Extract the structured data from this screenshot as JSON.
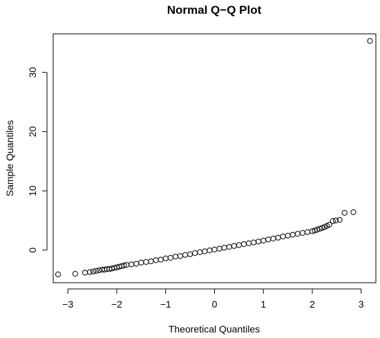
{
  "chart_data": {
    "type": "scatter",
    "title": "Normal Q−Q Plot",
    "xlabel": "Theoretical Quantiles",
    "ylabel": "Sample Quantiles",
    "xlim": [
      -3.3,
      3.3
    ],
    "ylim": [
      -5.5,
      36.5
    ],
    "xticks": [
      -3,
      -2,
      -1,
      0,
      1,
      2,
      3
    ],
    "xtick_labels": [
      "−3",
      "−2",
      "−1",
      "0",
      "1",
      "2",
      "3"
    ],
    "yticks": [
      0,
      10,
      20,
      30
    ],
    "ytick_labels": [
      "0",
      "10",
      "20",
      "30"
    ],
    "grid": false,
    "legend": "none",
    "series": [
      {
        "x": [
          -3.2,
          -2.85,
          -2.65,
          -2.55,
          -2.48,
          -2.42,
          -2.36,
          -2.3,
          -2.25,
          -2.2,
          -2.15,
          -2.1,
          -2.05,
          -2.0,
          -1.95,
          -1.9,
          -1.85,
          -1.8,
          -1.7,
          -1.6,
          -1.5,
          -1.4,
          -1.3,
          -1.2,
          -1.1,
          -1.0,
          -0.9,
          -0.8,
          -0.7,
          -0.6,
          -0.5,
          -0.4,
          -0.3,
          -0.2,
          -0.1,
          0.0,
          0.1,
          0.2,
          0.3,
          0.4,
          0.5,
          0.6,
          0.7,
          0.8,
          0.9,
          1.0,
          1.1,
          1.2,
          1.3,
          1.4,
          1.5,
          1.6,
          1.7,
          1.8,
          1.9,
          2.0,
          2.05,
          2.1,
          2.15,
          2.2,
          2.25,
          2.3,
          2.35,
          2.42,
          2.48,
          2.56,
          2.66,
          2.84,
          3.18
        ],
        "y": [
          -4.1,
          -4.0,
          -3.8,
          -3.7,
          -3.6,
          -3.5,
          -3.4,
          -3.3,
          -3.3,
          -3.2,
          -3.2,
          -3.1,
          -3.0,
          -2.9,
          -2.8,
          -2.7,
          -2.6,
          -2.5,
          -2.4,
          -2.3,
          -2.1,
          -2.0,
          -1.9,
          -1.7,
          -1.6,
          -1.4,
          -1.3,
          -1.1,
          -1.0,
          -0.8,
          -0.7,
          -0.5,
          -0.35,
          -0.2,
          -0.05,
          0.1,
          0.25,
          0.4,
          0.55,
          0.7,
          0.85,
          1.0,
          1.15,
          1.3,
          1.45,
          1.6,
          1.8,
          1.95,
          2.1,
          2.3,
          2.45,
          2.6,
          2.75,
          2.9,
          3.05,
          3.2,
          3.3,
          3.45,
          3.6,
          3.75,
          3.9,
          4.1,
          4.3,
          4.9,
          5.0,
          5.1,
          6.3,
          6.4,
          35.3
        ]
      }
    ]
  }
}
